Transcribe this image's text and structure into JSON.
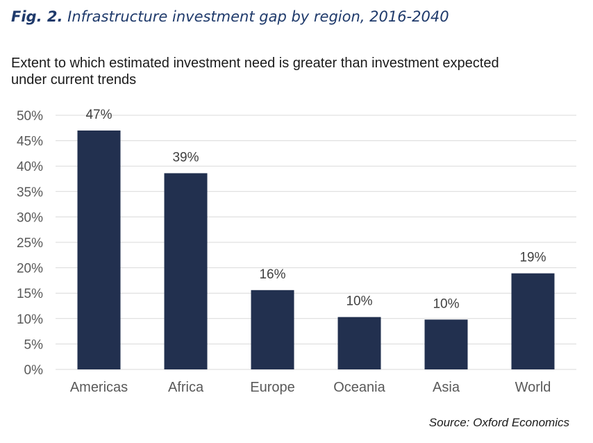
{
  "figure": {
    "label": "Fig. 2.",
    "title": "Infrastructure investment gap by region, 2016-2040"
  },
  "subtitle_lines": [
    "Extent to which estimated investment need is greater than investment expected",
    "under current trends"
  ],
  "source": "Source: Oxford Economics",
  "colors": {
    "bar": "#22304f",
    "grid": "#d9d9d9",
    "tick_text": "#595959",
    "label_text": "#404040",
    "title": "#1f3a6b"
  },
  "chart_data": {
    "type": "bar",
    "title": "Infrastructure investment gap by region, 2016-2040",
    "xlabel": "",
    "ylabel": "",
    "categories": [
      "Americas",
      "Africa",
      "Europe",
      "Oceania",
      "Asia",
      "World"
    ],
    "values": [
      47,
      38.6,
      15.6,
      10.3,
      9.8,
      18.9
    ],
    "data_labels": [
      "47%",
      "39%",
      "16%",
      "10%",
      "10%",
      "19%"
    ],
    "ylim": [
      0,
      50
    ],
    "yticks": [
      0,
      5,
      10,
      15,
      20,
      25,
      30,
      35,
      40,
      45,
      50
    ],
    "ytick_labels": [
      "0%",
      "5%",
      "10%",
      "15%",
      "20%",
      "25%",
      "30%",
      "35%",
      "40%",
      "45%",
      "50%"
    ],
    "grid": true,
    "legend": "none"
  }
}
